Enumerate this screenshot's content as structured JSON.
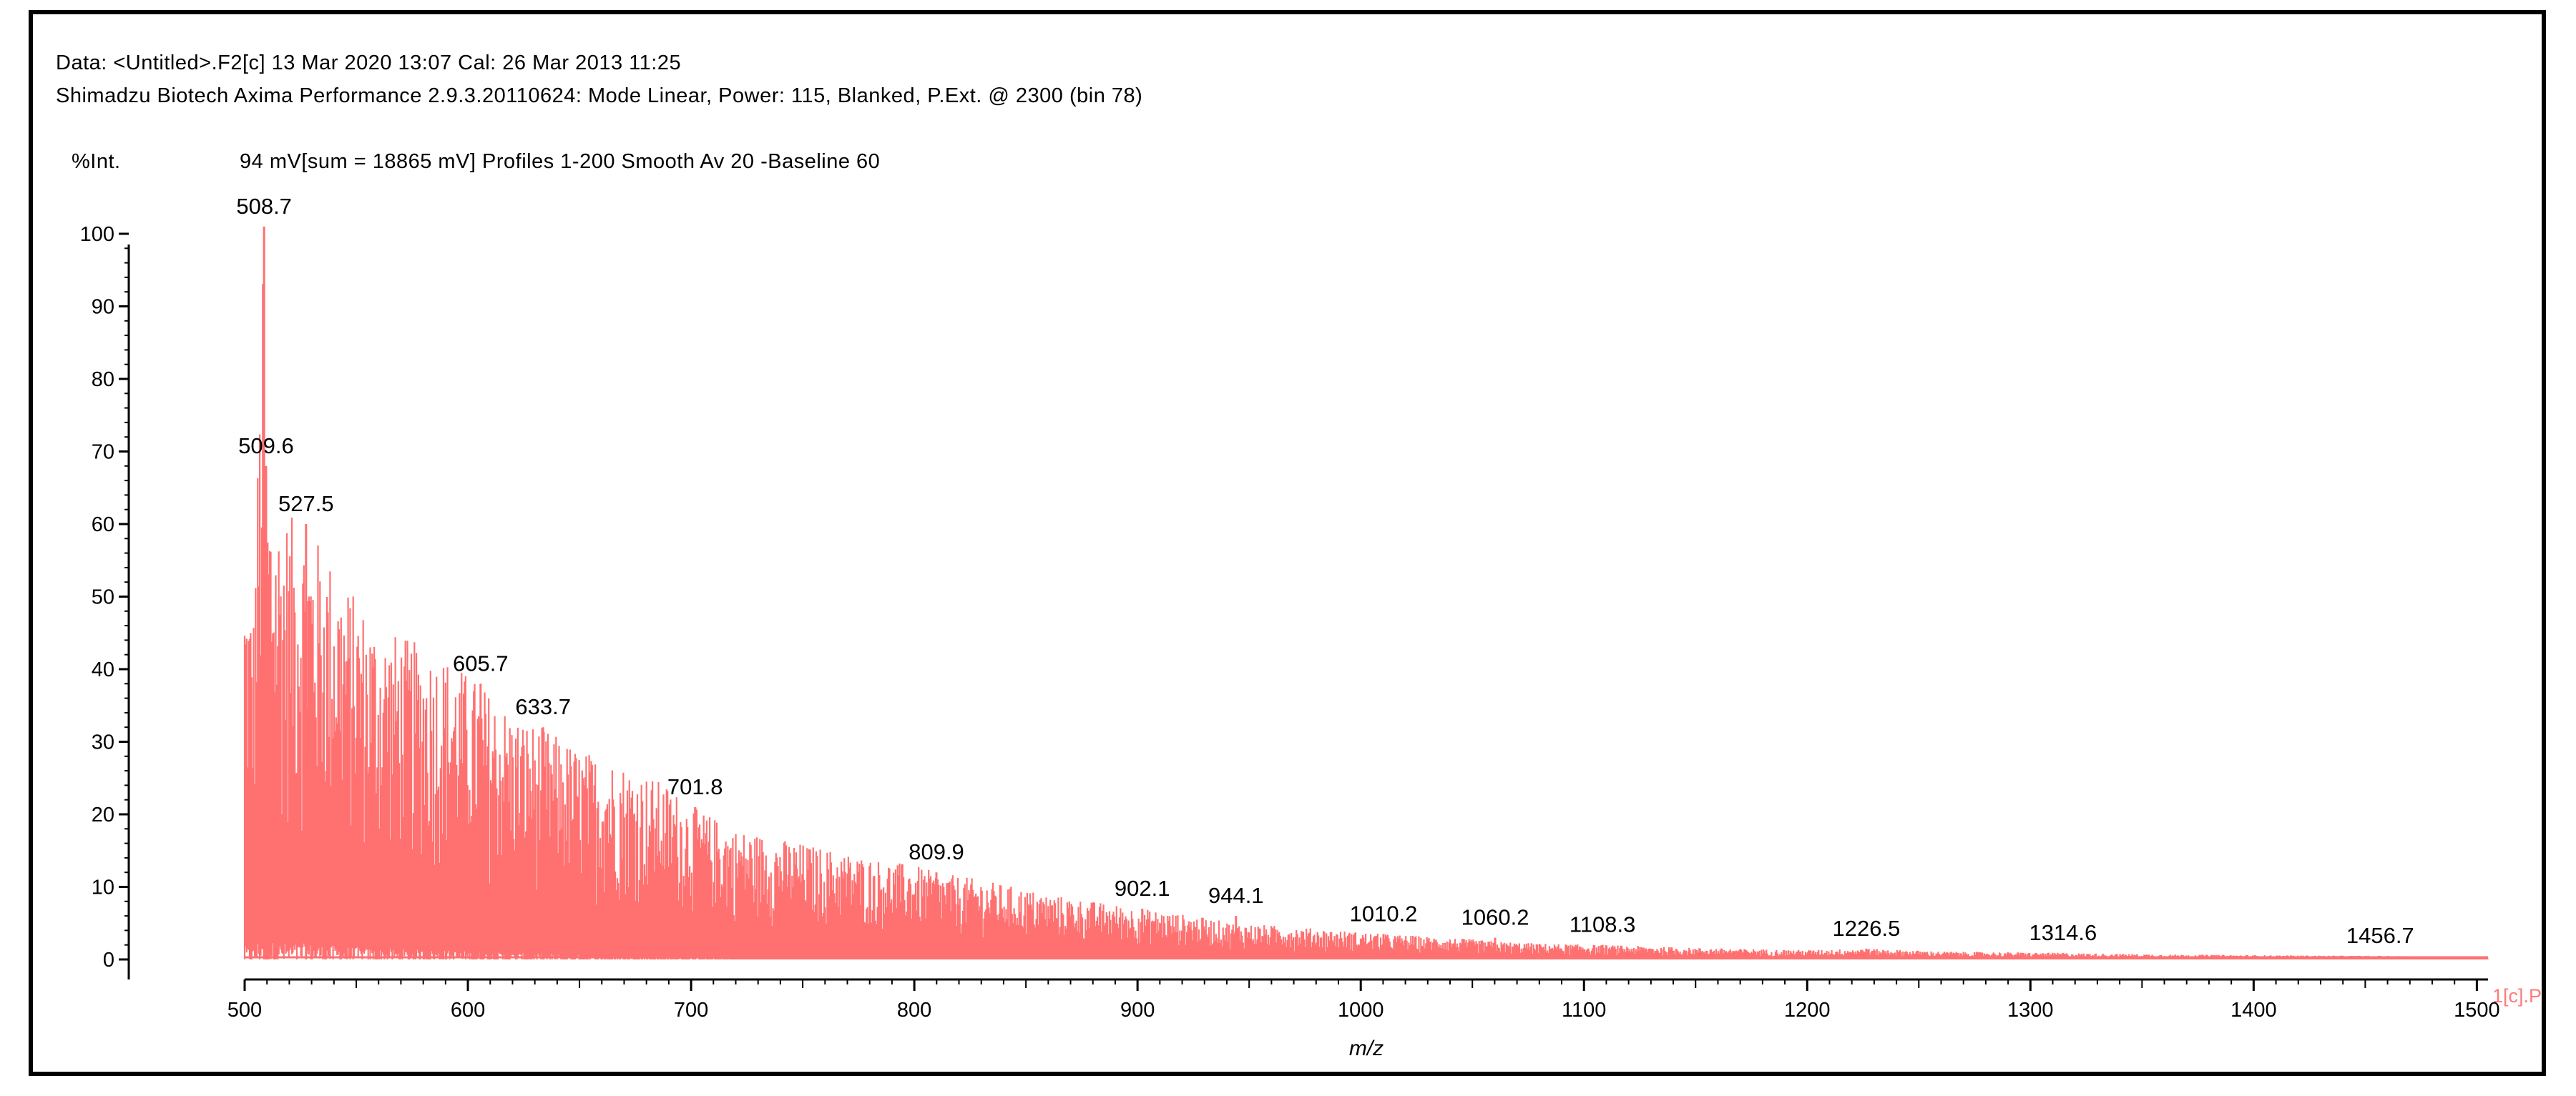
{
  "header": {
    "line1": "Data: <Untitled>.F2[c] 13 Mar 2020 13:07 Cal: 26 Mar 2013 11:25",
    "line2": "Shimadzu Biotech Axima Performance 2.9.3.20110624: Mode Linear, Power: 115, Blanked, P.Ext. @ 2300 (bin 78)",
    "int_label": "%Int.",
    "acq_info": "94 mV[sum = 18865 mV]  Profiles 1-200 Smooth Av 20 -Baseline 60"
  },
  "trace_tag": "1[c].P",
  "colors": {
    "trace": "#ff7070",
    "axis": "#000000",
    "frame": "#000000"
  },
  "chart_data": {
    "type": "bar",
    "xlabel": "m/z",
    "ylabel": "%Int.",
    "xlim": [
      500,
      1505
    ],
    "ylim": [
      0,
      100
    ],
    "x_ticks": [
      500,
      600,
      700,
      800,
      900,
      1000,
      1100,
      1200,
      1300,
      1400,
      1500
    ],
    "y_ticks": [
      0,
      10,
      20,
      30,
      40,
      50,
      60,
      70,
      80,
      90,
      100
    ],
    "grid": false,
    "envelope": {
      "x": [
        499,
        504,
        508.7,
        509.6,
        515,
        527.5,
        535,
        545,
        560,
        575,
        590,
        605.7,
        620,
        633.7,
        650,
        670,
        690,
        701.8,
        720,
        750,
        780,
        800,
        809.9,
        830,
        860,
        880,
        902.1,
        925,
        944.1,
        970,
        990,
        1010.2,
        1040,
        1060.2,
        1080,
        1108.3,
        1150,
        1200,
        1226.5,
        1260,
        1314.6,
        1360,
        1400,
        1456.7,
        1505
      ],
      "y": [
        55,
        48,
        101,
        68,
        62,
        60,
        57,
        52,
        46,
        44,
        42,
        38,
        34,
        32,
        29,
        27,
        24,
        21,
        18,
        16,
        14,
        13,
        12,
        11,
        9,
        8,
        7,
        6,
        5,
        4.5,
        4,
        3.5,
        3,
        2.5,
        2.2,
        2,
        1.6,
        1.3,
        1.5,
        1.1,
        0.9,
        0.7,
        0.6,
        0.5,
        0.4
      ]
    },
    "annotations": [
      {
        "label": "508.7",
        "x": 508.7,
        "y": 101
      },
      {
        "label": "509.6",
        "x": 509.6,
        "y": 68
      },
      {
        "label": "527.5",
        "x": 527.5,
        "y": 60
      },
      {
        "label": "605.7",
        "x": 605.7,
        "y": 38
      },
      {
        "label": "633.7",
        "x": 633.7,
        "y": 32
      },
      {
        "label": "701.8",
        "x": 701.8,
        "y": 21
      },
      {
        "label": "809.9",
        "x": 809.9,
        "y": 12
      },
      {
        "label": "902.1",
        "x": 902.1,
        "y": 7
      },
      {
        "label": "944.1",
        "x": 944.1,
        "y": 6
      },
      {
        "label": "1010.2",
        "x": 1010.2,
        "y": 3.5
      },
      {
        "label": "1060.2",
        "x": 1060.2,
        "y": 3
      },
      {
        "label": "1108.3",
        "x": 1108.3,
        "y": 2
      },
      {
        "label": "1226.5",
        "x": 1226.5,
        "y": 1.5
      },
      {
        "label": "1314.6",
        "x": 1314.6,
        "y": 0.9
      },
      {
        "label": "1456.7",
        "x": 1456.7,
        "y": 0.5
      }
    ]
  }
}
